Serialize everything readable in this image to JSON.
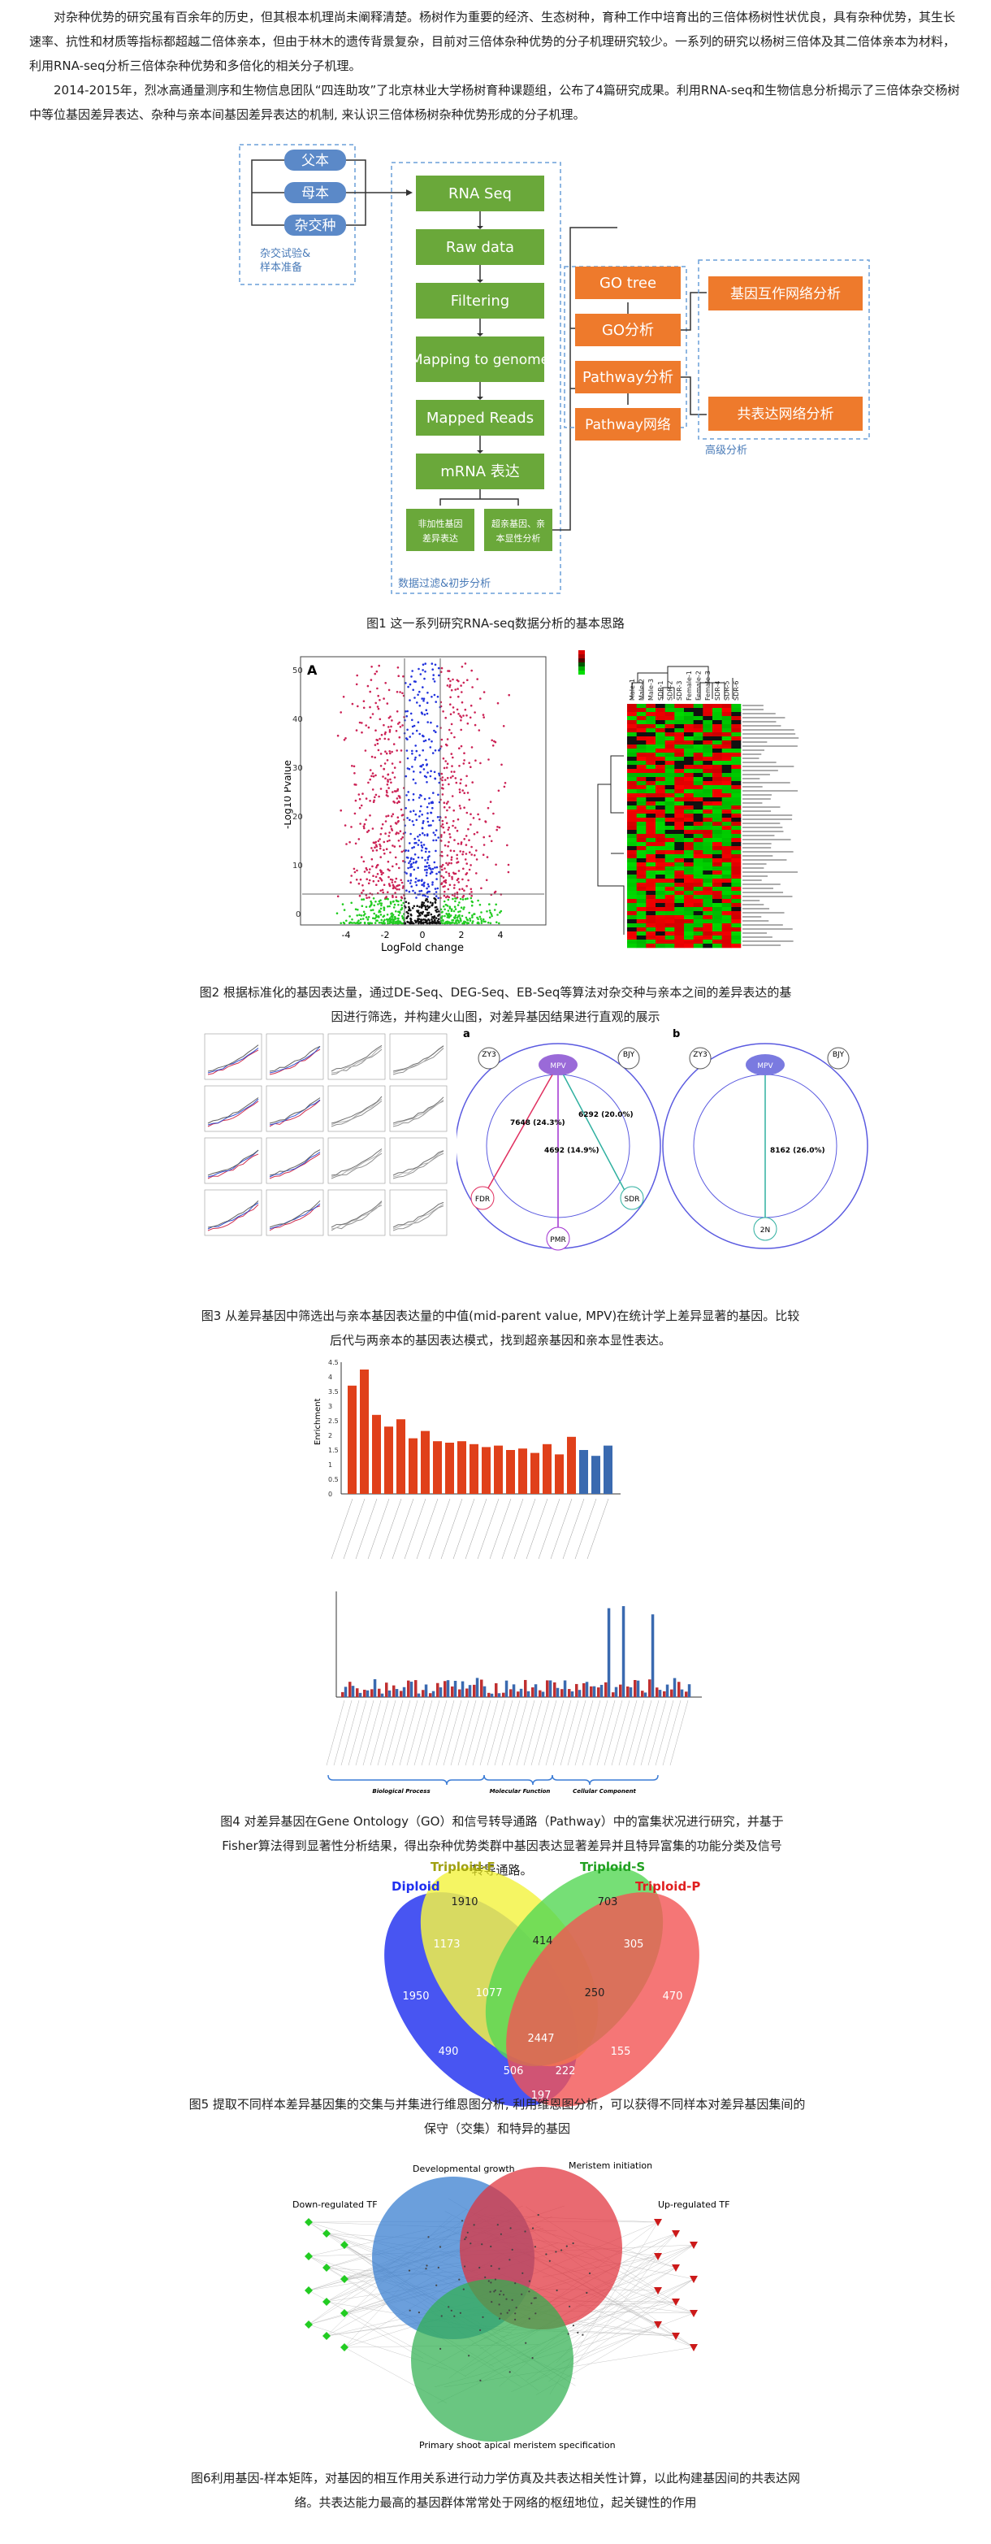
{
  "intro": {
    "para1": "对杂种优势的研究虽有百余年的历史，但其根本机理尚未阐释清楚。杨树作为重要的经济、生态树种，育种工作中培育出的三倍体杨树性状优良，具有杂种优势，其生长速率、抗性和材质等指标都超越二倍体亲本，但由于林木的遗传背景复杂，目前对三倍体杂种优势的分子机理研究较少。一系列的研究以杨树三倍体及其二倍体亲本为材料，利用RNA-seq分析三倍体杂种优势和多倍化的相关分子机理。",
    "para2": "2014-2015年，烈冰高通量测序和生物信息团队“四连助攻”了北京林业大学杨树育种课题组，公布了4篇研究成果。利用RNA-seq和生物信息分析揭示了三倍体杂交杨树中等位基因差异表达、杂种与亲本间基因差异表达的机制, 来认识三倍体杨树杂种优势形成的分子机理。"
  },
  "fig1": {
    "parents": [
      "父本",
      "母本",
      "杂交种"
    ],
    "prep_label": [
      "杂交试验&",
      "样本准备"
    ],
    "steps": [
      "RNA Seq",
      "Raw data",
      "Filtering",
      "Mapping to genome",
      "Mapped Reads",
      "mRNA 表达"
    ],
    "sub_left": [
      "非加性基因",
      "差异表达"
    ],
    "sub_right": [
      "超亲基因、亲",
      "本显性分析"
    ],
    "process_label": "数据过滤&初步分析",
    "mid": [
      "GO tree",
      "GO分析",
      "Pathway分析",
      "Pathway网络"
    ],
    "right": [
      "基因互作网络分析",
      "共表达网络分析"
    ],
    "advanced_label": "高级分析",
    "caption": "图1 这一系列研究RNA-seq数据分析的基本思路"
  },
  "fig2": {
    "panel": "A",
    "xlabel": "LogFold change",
    "ylabel": "-Log10 Pvalue",
    "xticks": [
      "-4",
      "-2",
      "0",
      "2",
      "4"
    ],
    "yticks": [
      "0",
      "10",
      "20",
      "30",
      "40",
      "50"
    ],
    "heat_samples": [
      "Male-1",
      "Male-2",
      "Male-3",
      "SDR-1",
      "SDR-2",
      "SDR-3",
      "Female-1",
      "Female-2",
      "Female-3",
      "SDR-4",
      "SDR-5",
      "SDR-6"
    ],
    "caption": "图2 根据标准化的基因表达量，通过DE-Seq、DEG-Seq、EB-Seq等算法对杂交种与亲本之间的差异表达的基因进行筛选，并构建火山图，对差异基因结果进行直观的展示"
  },
  "fig3": {
    "panel_a": "a",
    "panel_b": "b",
    "nodes_a": [
      "ZY3",
      "BJY",
      "MPV",
      "FDR",
      "SDR",
      "PMR"
    ],
    "values_a": [
      "7648 (24.3%)",
      "6292 (20.0%)",
      "4692 (14.9%)"
    ],
    "nodes_b": [
      "ZY3",
      "BJY",
      "MPV",
      "2N"
    ],
    "values_b": [
      "8162 (26.0%)"
    ],
    "caption": "图3 从差异基因中筛选出与亲本基因表达量的中值(mid-parent value, MPV)在统计学上差异显著的基因。比较后代与两亲本的基因表达模式，找到超亲基因和亲本显性表达。"
  },
  "fig4": {
    "ylabel": "Enrichment",
    "yticks": [
      "0",
      "0.5",
      "1",
      "1.5",
      "2",
      "2.5",
      "3",
      "3.5",
      "4",
      "4.5"
    ],
    "groups": [
      "Biological Process",
      "Molecular Function",
      "Cellular Component"
    ],
    "caption": "图4 对差异基因在Gene Ontology（GO）和信号转导通路（Pathway）中的富集状况进行研究，并基于Fisher算法得到显著性分析结果，得出杂种优势类群中基因表达显著差异并且特异富集的功能分类及信号转导通路。"
  },
  "fig5": {
    "sets": [
      "Diploid",
      "Triploid-F",
      "Triploid-S",
      "Triploid-P"
    ],
    "colors": [
      "#2030f0",
      "#f0f020",
      "#30d030",
      "#f03030"
    ],
    "values": [
      "1910",
      "703",
      "1173",
      "414",
      "305",
      "1950",
      "1077",
      "250",
      "470",
      "490",
      "2447",
      "155",
      "506",
      "222",
      "197"
    ],
    "caption": "图5 提取不同样本差异基因集的交集与并集进行维恩图分析, 利用维恩图分析，可以获得不同样本对差异基因集间的保守（交集）和特异的基因"
  },
  "fig6": {
    "labels": [
      "Developmental growth",
      "Meristem initiation",
      "Down-regulated TF",
      "Up-regulated TF",
      "Primary shoot apical meristem specification"
    ],
    "caption": "图6利用基因-样本矩阵，对基因的相互作用关系进行动力学仿真及共表达相关性计算，以此构建基因间的共表达网络。共表达能力最高的基因群体常常处于网络的枢纽地位，起关键性的作用"
  }
}
